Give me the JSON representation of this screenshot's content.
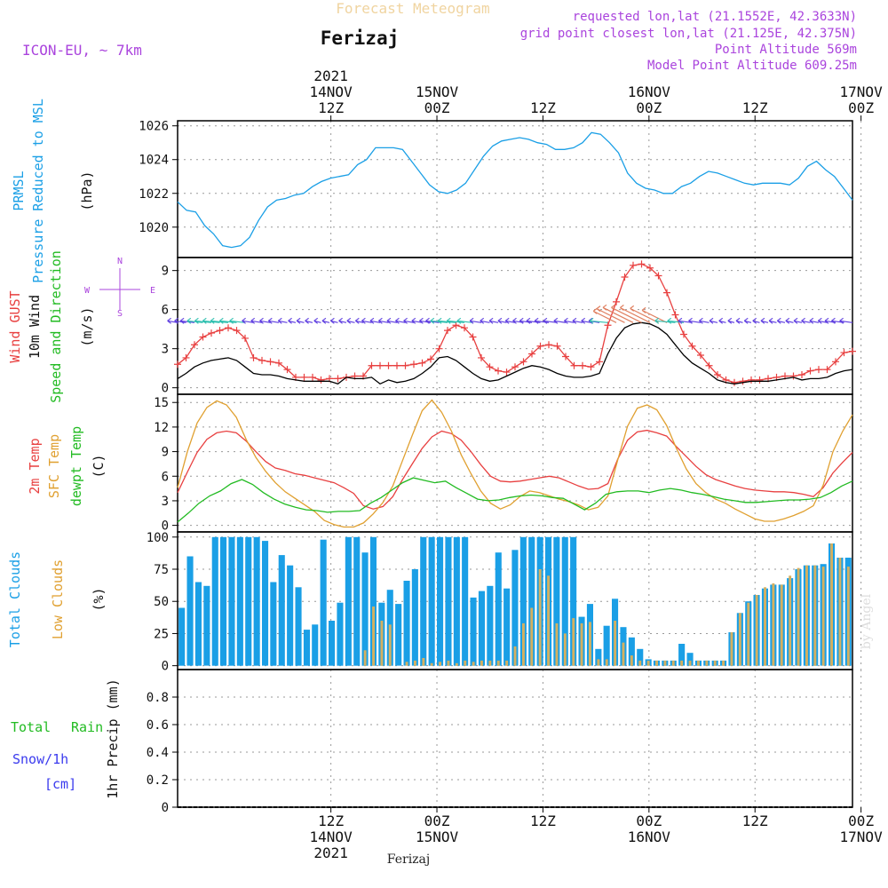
{
  "header": {
    "product": "Forecast Meteogram",
    "location": "Ferizaj",
    "model": "ICON-EU, ~ 7km",
    "requested": "requested lon,lat (21.1552E, 42.3633N)",
    "gridpoint": "grid point closest lon,lat (21.125E, 42.375N)",
    "point_alt": "Point Altitude 569m",
    "model_alt": "Model Point Altitude 609.25m",
    "credit": "by Angel",
    "footer": "Ferizaj"
  },
  "colors": {
    "pressure": "#1a9fe6",
    "gust": "#e84040",
    "wind": "#000000",
    "dir_label": "#22bb22",
    "t2m": "#e84040",
    "sfc": "#e0a030",
    "dew": "#22bb22",
    "total_clouds": "#1a9fe6",
    "low_clouds": "#d4b060",
    "total_rain": "#22bb22",
    "snow": "#3a3aee",
    "purple": "#aa44dd"
  },
  "time_axis": {
    "top_year": "2021",
    "bottom_year": "2021",
    "ticks": [
      {
        "hour": 12,
        "top": "12Z",
        "date": "14NOV"
      },
      {
        "hour": 24,
        "top": "00Z",
        "date": "15NOV"
      },
      {
        "hour": 36,
        "top": "12Z",
        "date": ""
      },
      {
        "hour": 48,
        "top": "00Z",
        "date": "16NOV"
      },
      {
        "hour": 60,
        "top": "12Z",
        "date": ""
      },
      {
        "hour": 72,
        "top": "00Z",
        "date": "17NOV"
      }
    ]
  },
  "panels": {
    "pressure": {
      "label1": "PRMSL",
      "label2": "Pressure Reduced to MSL",
      "unit": "(hPa)"
    },
    "wind": {
      "label1": "Wind GUST",
      "label2": "10m Wind",
      "label3": "Speed and Direction",
      "unit": "(m/s)",
      "compass": {
        "w": "W",
        "e": "E",
        "n": "N",
        "s": "S"
      }
    },
    "temp": {
      "label1": "2m Temp",
      "label2": "SFC Temp",
      "label3": "dewpt Temp",
      "unit": "(C)"
    },
    "clouds": {
      "label1": "Total Clouds",
      "label2": "Low Clouds",
      "unit": "(%)"
    },
    "precip": {
      "label1": "Total",
      "label1b": "Rain",
      "label2": "Snow/1h",
      "label3": "[cm]",
      "ylabel": "1hr Precip (mm)"
    }
  },
  "chart_data": [
    {
      "type": "line",
      "title": "PRMSL Pressure Reduced to MSL",
      "ylabel": "(hPa)",
      "ylim": [
        1018.2,
        1026.3
      ],
      "yticks": [
        1020,
        1022,
        1024,
        1026
      ],
      "x_hours": [
        0,
        1,
        2,
        3,
        4,
        5,
        6,
        7,
        8,
        9,
        10,
        11,
        12,
        13,
        14,
        15,
        16,
        17,
        18,
        19,
        20,
        21,
        22,
        23,
        24,
        25,
        26,
        27,
        28,
        29,
        30,
        31,
        32,
        33,
        34,
        35,
        36,
        37,
        38,
        39,
        40,
        41,
        42,
        43,
        44,
        45,
        46,
        47,
        48,
        49,
        50,
        51,
        52,
        53,
        54,
        55,
        56,
        57,
        58,
        59,
        60,
        61,
        62,
        63,
        64,
        65,
        66,
        67,
        68,
        69,
        70,
        71,
        72,
        73,
        74,
        75,
        76,
        77
      ],
      "series": [
        {
          "values": [
            1021.5,
            1021.0,
            1020.9,
            1020.1,
            1019.6,
            1018.9,
            1018.8,
            1018.9,
            1019.4,
            1020.4,
            1021.2,
            1021.6,
            1021.7,
            1021.9,
            1022.0,
            1022.4,
            1022.7,
            1022.9,
            1023.0,
            1023.1,
            1023.7,
            1024.0,
            1024.7,
            1024.7,
            1024.7,
            1024.6,
            1023.9,
            1023.2,
            1022.5,
            1022.1,
            1022.0,
            1022.2,
            1022.6,
            1023.4,
            1024.2,
            1024.8,
            1025.1,
            1025.2,
            1025.3,
            1025.2,
            1025.0,
            1024.9,
            1024.6,
            1024.6,
            1024.7,
            1025.0,
            1025.6,
            1025.5,
            1025.0,
            1024.4,
            1023.2,
            1022.6,
            1022.3,
            1022.2,
            1022.0,
            1022.0,
            1022.4,
            1022.6,
            1023.0,
            1023.3,
            1023.2,
            1023.0,
            1022.8,
            1022.6,
            1022.5,
            1022.6,
            1022.6,
            1022.6,
            1022.5,
            1022.9,
            1023.6,
            1023.9,
            1023.4,
            1023.0,
            1022.3,
            1021.6
          ]
        }
      ]
    },
    {
      "type": "line",
      "title": "Wind GUST / 10m Wind Speed and Direction",
      "ylabel": "(m/s)",
      "ylim": [
        -0.5,
        10
      ],
      "yticks": [
        0,
        3,
        6,
        9
      ],
      "series": [
        {
          "name": "Wind GUST",
          "values": [
            1.8,
            2.3,
            3.3,
            3.9,
            4.2,
            4.4,
            4.6,
            4.4,
            3.8,
            2.3,
            2.1,
            2.0,
            1.9,
            1.4,
            0.8,
            0.8,
            0.8,
            0.6,
            0.7,
            0.7,
            0.8,
            0.9,
            0.9,
            1.7,
            1.7,
            1.7,
            1.7,
            1.7,
            1.8,
            1.9,
            2.2,
            3.0,
            4.4,
            4.8,
            4.6,
            3.9,
            2.3,
            1.6,
            1.3,
            1.2,
            1.6,
            2.0,
            2.6,
            3.2,
            3.3,
            3.2,
            2.4,
            1.7,
            1.7,
            1.6,
            2.0,
            4.8,
            6.6,
            8.5,
            9.4,
            9.5,
            9.2,
            8.6,
            7.3,
            5.6,
            4.1,
            3.2,
            2.5,
            1.7,
            1.0,
            0.6,
            0.4,
            0.5,
            0.6,
            0.6,
            0.7,
            0.8,
            0.9,
            0.9,
            1.0,
            1.3,
            1.4,
            1.4,
            2.0,
            2.7,
            2.8
          ]
        },
        {
          "name": "10m Wind",
          "values": [
            0.7,
            1.1,
            1.6,
            1.9,
            2.1,
            2.2,
            2.3,
            2.1,
            1.6,
            1.1,
            1.0,
            1.0,
            0.9,
            0.7,
            0.6,
            0.5,
            0.5,
            0.5,
            0.5,
            0.3,
            0.8,
            0.7,
            0.7,
            0.8,
            0.3,
            0.6,
            0.4,
            0.5,
            0.7,
            1.1,
            1.6,
            2.3,
            2.4,
            2.1,
            1.6,
            1.1,
            0.7,
            0.5,
            0.6,
            0.9,
            1.2,
            1.5,
            1.7,
            1.6,
            1.4,
            1.1,
            0.9,
            0.8,
            0.8,
            0.9,
            1.1,
            2.6,
            3.8,
            4.6,
            4.9,
            5.0,
            4.9,
            4.6,
            4.1,
            3.3,
            2.5,
            1.9,
            1.5,
            1.1,
            0.6,
            0.4,
            0.3,
            0.4,
            0.5,
            0.5,
            0.5,
            0.6,
            0.7,
            0.8,
            0.6,
            0.7,
            0.7,
            0.8,
            1.1,
            1.3,
            1.4
          ]
        }
      ]
    },
    {
      "type": "line",
      "title": "2m Temp / SFC Temp / dewpt Temp",
      "ylabel": "(C)",
      "ylim": [
        -0.8,
        16
      ],
      "yticks": [
        0,
        3,
        6,
        9,
        12,
        15
      ],
      "series": [
        {
          "name": "2m Temp",
          "values": [
            4.0,
            6.5,
            8.9,
            10.5,
            11.3,
            11.5,
            11.3,
            10.3,
            9.0,
            7.8,
            7.0,
            6.7,
            6.3,
            6.1,
            5.8,
            5.5,
            5.2,
            4.6,
            3.9,
            2.4,
            2.0,
            2.3,
            3.5,
            5.6,
            7.5,
            9.4,
            10.8,
            11.5,
            11.2,
            10.4,
            9.0,
            7.4,
            6.0,
            5.4,
            5.3,
            5.4,
            5.6,
            5.8,
            6.0,
            5.8,
            5.3,
            4.8,
            4.4,
            4.5,
            5.1,
            8.1,
            10.4,
            11.4,
            11.6,
            11.3,
            10.9,
            9.6,
            8.4,
            7.2,
            6.2,
            5.6,
            5.2,
            4.8,
            4.5,
            4.3,
            4.2,
            4.1,
            4.1,
            4.0,
            3.8,
            3.5,
            4.6,
            6.4,
            7.7,
            8.9
          ]
        },
        {
          "name": "SFC Temp",
          "values": [
            4.6,
            9.0,
            12.5,
            14.4,
            15.2,
            14.7,
            13.2,
            10.5,
            8.3,
            6.6,
            5.2,
            4.1,
            3.3,
            2.5,
            1.7,
            0.6,
            0.1,
            -0.2,
            -0.2,
            0.3,
            1.4,
            2.8,
            4.8,
            7.9,
            11.0,
            14.0,
            15.3,
            13.8,
            11.5,
            8.6,
            6.3,
            4.2,
            2.7,
            2.0,
            2.5,
            3.5,
            4.2,
            4.0,
            3.6,
            3.2,
            2.9,
            2.5,
            1.9,
            2.2,
            3.6,
            8.0,
            12.1,
            14.3,
            14.7,
            14.1,
            12.2,
            9.4,
            6.9,
            5.1,
            4.0,
            3.2,
            2.7,
            2.0,
            1.4,
            0.8,
            0.5,
            0.5,
            0.8,
            1.2,
            1.7,
            2.4,
            4.9,
            9.0,
            11.5,
            13.5
          ]
        },
        {
          "name": "dewpt Temp",
          "values": [
            0.4,
            1.5,
            2.7,
            3.6,
            4.2,
            5.1,
            5.6,
            5.0,
            4.0,
            3.2,
            2.6,
            2.2,
            1.9,
            1.8,
            1.6,
            1.7,
            1.7,
            1.8,
            2.7,
            3.4,
            4.3,
            5.2,
            5.8,
            5.5,
            5.2,
            5.4,
            4.6,
            3.9,
            3.2,
            3.0,
            3.1,
            3.4,
            3.6,
            3.7,
            3.6,
            3.4,
            3.3,
            2.6,
            1.9,
            2.7,
            3.8,
            4.1,
            4.2,
            4.2,
            4.0,
            4.3,
            4.5,
            4.3,
            4.0,
            3.8,
            3.5,
            3.2,
            3.0,
            2.8,
            2.8,
            2.9,
            3.0,
            3.1,
            3.1,
            3.2,
            3.4,
            4.0,
            4.8,
            5.4
          ]
        }
      ]
    },
    {
      "type": "bar",
      "title": "Total Clouds / Low Clouds",
      "ylabel": "(%)",
      "ylim": [
        -3,
        104
      ],
      "yticks": [
        0,
        25,
        50,
        75,
        100
      ],
      "series": [
        {
          "name": "Total Clouds",
          "values": [
            45,
            85,
            65,
            62,
            100,
            100,
            100,
            100,
            100,
            100,
            97,
            65,
            86,
            78,
            61,
            28,
            32,
            98,
            35,
            49,
            100,
            100,
            88,
            100,
            49,
            59,
            48,
            66,
            75,
            100,
            100,
            100,
            100,
            100,
            100,
            53,
            58,
            62,
            88,
            60,
            90,
            100,
            100,
            100,
            100,
            100,
            100,
            100,
            38,
            48,
            13,
            31,
            52,
            30,
            22,
            13,
            5,
            4,
            4,
            4,
            17,
            10,
            4,
            4,
            4,
            4,
            26,
            41,
            50,
            55,
            60,
            63,
            63,
            68,
            75,
            78,
            78,
            79,
            95,
            84,
            84
          ]
        },
        {
          "name": "Low Clouds",
          "values": [
            0,
            0,
            0,
            0,
            0,
            0,
            0,
            0,
            0,
            0,
            0,
            0,
            0,
            0,
            0,
            0,
            0,
            0,
            0,
            0,
            0,
            0,
            12,
            46,
            35,
            32,
            0,
            3,
            4,
            6,
            2,
            3,
            4,
            2,
            4,
            3,
            4,
            4,
            4,
            4,
            15,
            33,
            45,
            75,
            70,
            33,
            25,
            37,
            33,
            34,
            5,
            5,
            35,
            18,
            8,
            4,
            4,
            4,
            4,
            4,
            4,
            4,
            4,
            4,
            4,
            4,
            26,
            41,
            49,
            55,
            61,
            64,
            63,
            70,
            76,
            78,
            78,
            77,
            95,
            84,
            77
          ]
        }
      ]
    },
    {
      "type": "line",
      "title": "1hr Precip (mm)",
      "ylabel": "1hr Precip (mm)",
      "ylim": [
        0,
        1.0
      ],
      "yticks": [
        0,
        0.2,
        0.4,
        0.6,
        0.8
      ],
      "series": []
    }
  ]
}
